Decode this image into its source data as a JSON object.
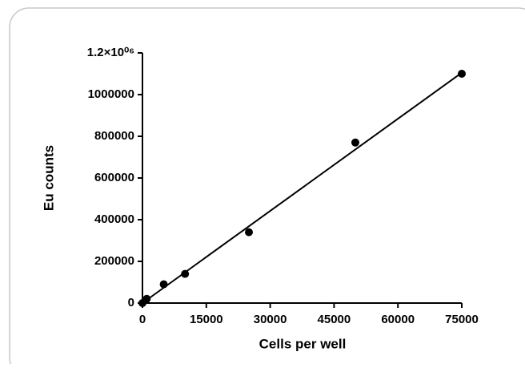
{
  "chart_data": {
    "type": "scatter",
    "x_label": "Cells per well",
    "y_label": "Eu counts",
    "x": [
      0,
      1000,
      5000,
      10000,
      25000,
      50000,
      75000
    ],
    "y": [
      0,
      20000,
      90000,
      140000,
      340000,
      770000,
      1100000
    ],
    "color": "#000000",
    "fit": {
      "x": [
        0,
        75000
      ],
      "y": [
        0,
        1105000
      ]
    },
    "xlim": [
      0,
      75000
    ],
    "xticks": [
      0,
      15000,
      30000,
      45000,
      60000,
      75000
    ],
    "ylim": [
      0,
      1200000
    ],
    "yticks": [
      0,
      200000,
      400000,
      600000,
      800000,
      1000000,
      {
        "value": 1200000,
        "label": "1.2×10⁰⁶"
      }
    ],
    "grid": false
  }
}
